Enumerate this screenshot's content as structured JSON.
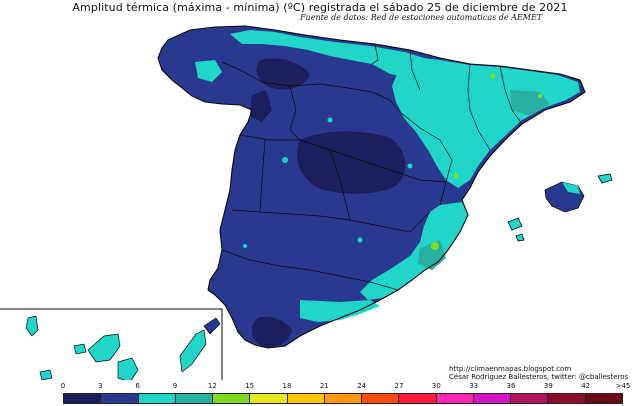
{
  "header": {
    "title": "Amplitud térmica (máxima - mínima) (ºC) registrada el sábado 25 de diciembre de 2021",
    "subtitle": "Fuente de datos: Red de estaciones automaticas de AEMET"
  },
  "credit": {
    "line1": "http://climaenmapas.blogspot.com",
    "line2": "César Rodríguez Ballesteros, twitter: @cballesteros"
  },
  "legend": {
    "ticks": [
      "0",
      "3",
      "6",
      "9",
      "12",
      "15",
      "18",
      "21",
      "24",
      "27",
      "30",
      "33",
      "36",
      "39",
      "42",
      ">45"
    ],
    "colors": [
      "#1b1f5e",
      "#2a3990",
      "#20d6c9",
      "#28b0a0",
      "#7fdc1e",
      "#e8e81c",
      "#ffc60a",
      "#ff9a10",
      "#ff4a10",
      "#ff1a40",
      "#ff26b4",
      "#d414c8",
      "#b81060",
      "#8a0e2c",
      "#6c0a14"
    ]
  },
  "colors": {
    "sea": "#ffffff",
    "very_low": "#1b1f5e",
    "low": "#2a3990",
    "mid": "#20d6c9",
    "mid_high": "#28b0a0",
    "high": "#7fdc1e",
    "border": "#0a0a0a"
  }
}
